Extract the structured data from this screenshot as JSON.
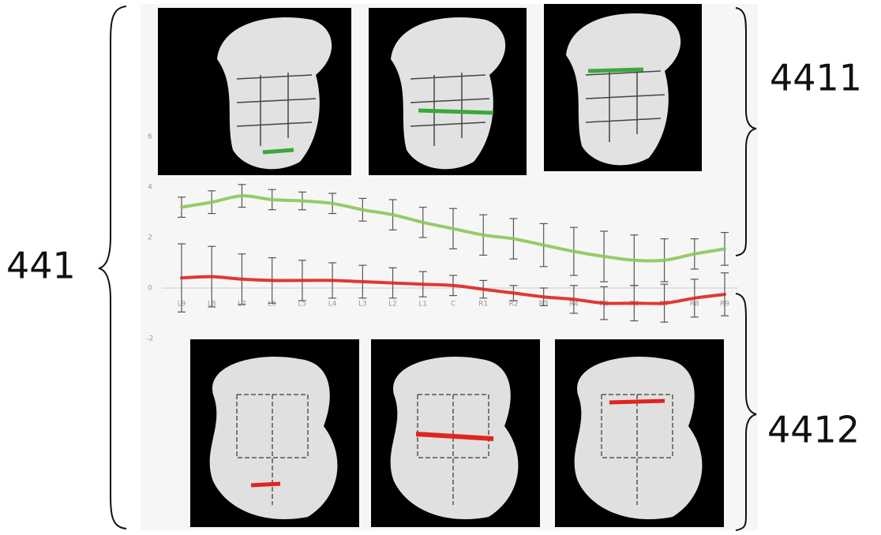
{
  "chart_data": {
    "type": "line",
    "categories": [
      "L9",
      "L8",
      "L7",
      "L6",
      "L5",
      "L4",
      "L3",
      "L2",
      "L1",
      "C",
      "R1",
      "R2",
      "R3",
      "R4",
      "R5",
      "R6",
      "R7",
      "R8",
      "R9"
    ],
    "series": [
      {
        "color": "#8cc65a",
        "values": [
          3.2,
          3.4,
          3.65,
          3.5,
          3.45,
          3.35,
          3.1,
          2.9,
          2.6,
          2.35,
          2.1,
          1.95,
          1.7,
          1.45,
          1.25,
          1.1,
          1.1,
          1.35,
          1.55
        ],
        "errors": [
          0.4,
          0.45,
          0.45,
          0.4,
          0.35,
          0.4,
          0.45,
          0.6,
          0.6,
          0.8,
          0.8,
          0.8,
          0.85,
          0.95,
          1.0,
          1.0,
          0.85,
          0.6,
          0.65
        ]
      },
      {
        "color": "#e0241f",
        "values": [
          0.4,
          0.45,
          0.35,
          0.3,
          0.3,
          0.3,
          0.25,
          0.2,
          0.15,
          0.1,
          -0.05,
          -0.2,
          -0.35,
          -0.45,
          -0.6,
          -0.6,
          -0.6,
          -0.4,
          -0.25
        ],
        "errors": [
          1.35,
          1.2,
          1.0,
          0.9,
          0.8,
          0.7,
          0.65,
          0.6,
          0.5,
          0.4,
          0.35,
          0.3,
          0.35,
          0.55,
          0.65,
          0.7,
          0.75,
          0.75,
          0.85
        ]
      }
    ],
    "ylim": [
      -2.5,
      6.5
    ],
    "yticks": [
      -2,
      0,
      2,
      4,
      6
    ],
    "annotations": [
      "441",
      "4411",
      "4412"
    ]
  }
}
